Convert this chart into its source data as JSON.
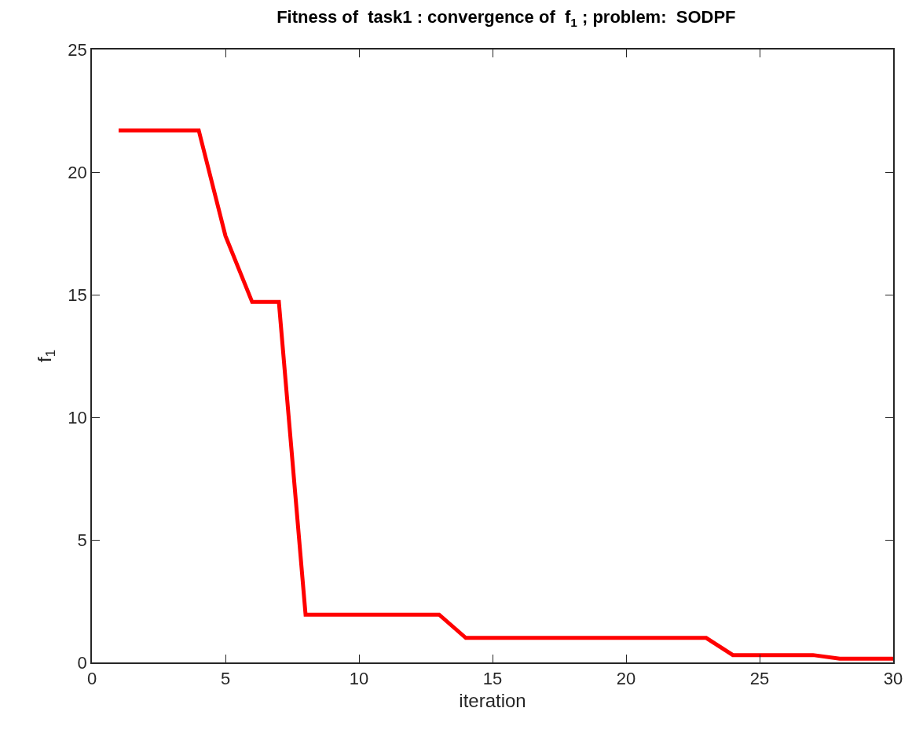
{
  "chart_data": {
    "type": "line",
    "title": "Fitness of  task1 : convergence of  f$_{1}$ ; problem:  SODPF",
    "xlabel": "iteration",
    "ylabel": "f$_{1}$",
    "x": [
      1,
      2,
      3,
      4,
      5,
      6,
      7,
      8,
      9,
      10,
      11,
      12,
      13,
      14,
      15,
      16,
      17,
      18,
      19,
      20,
      21,
      22,
      23,
      24,
      25,
      26,
      27,
      28,
      29,
      30
    ],
    "series": [
      {
        "color": "#ff0000",
        "values": [
          21.7,
          21.7,
          21.7,
          21.7,
          17.4,
          14.7,
          14.7,
          1.95,
          1.95,
          1.95,
          1.95,
          1.95,
          1.95,
          1.0,
          1.0,
          1.0,
          1.0,
          1.0,
          1.0,
          1.0,
          1.0,
          1.0,
          1.0,
          0.3,
          0.3,
          0.3,
          0.3,
          0.15,
          0.15,
          0.15
        ]
      }
    ],
    "xlim": [
      0,
      30
    ],
    "xticks": [
      0,
      5,
      10,
      15,
      20,
      25,
      30
    ],
    "ylim": [
      0,
      25
    ],
    "yticks": [
      0,
      5,
      10,
      15,
      20,
      25
    ],
    "marker": "none",
    "line_style": "solid"
  }
}
